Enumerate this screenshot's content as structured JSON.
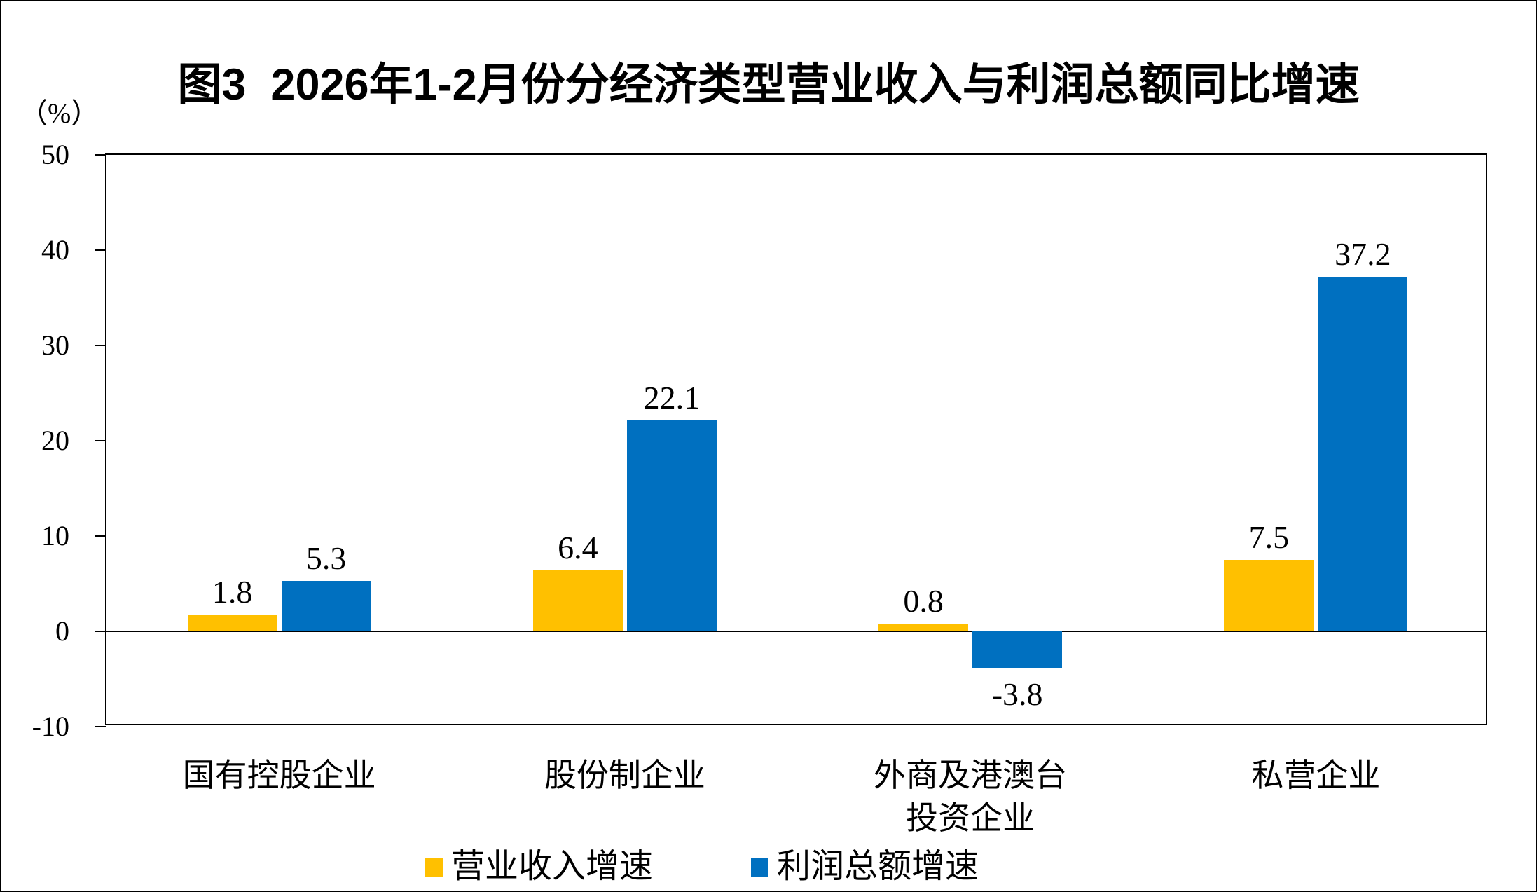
{
  "title": "图3  2026年1-2月份分经济类型营业收入与利润总额同比增速",
  "chart_data": {
    "type": "bar",
    "title": "图3  2026年1-2月份分经济类型营业收入与利润总额同比增速",
    "ylabel": "（%）",
    "ylim": [
      -10,
      50
    ],
    "yticks": [
      50,
      40,
      30,
      20,
      10,
      0,
      -10
    ],
    "ytick_labels": [
      "50",
      "40",
      "30",
      "20",
      "10",
      "0",
      "-10"
    ],
    "grid": false,
    "legend_position": "bottom",
    "categories": [
      "国有控股企业",
      "股份制企业",
      "外商及港澳台\n投资企业",
      "私营企业"
    ],
    "series": [
      {
        "name": "营业收入增速",
        "color": "#FFC000",
        "values": [
          1.8,
          6.4,
          0.8,
          7.5
        ],
        "labels": [
          "1.8",
          "6.4",
          "0.8",
          "7.5"
        ]
      },
      {
        "name": "利润总额增速",
        "color": "#0070C0",
        "values": [
          5.3,
          22.1,
          -3.8,
          37.2
        ],
        "labels": [
          "5.3",
          "22.1",
          "-3.8",
          "37.2"
        ]
      }
    ]
  },
  "colors": {
    "revenue_series": "#FFC000",
    "profit_series": "#0070C0",
    "axis": "#000000",
    "background": "#ffffff"
  }
}
